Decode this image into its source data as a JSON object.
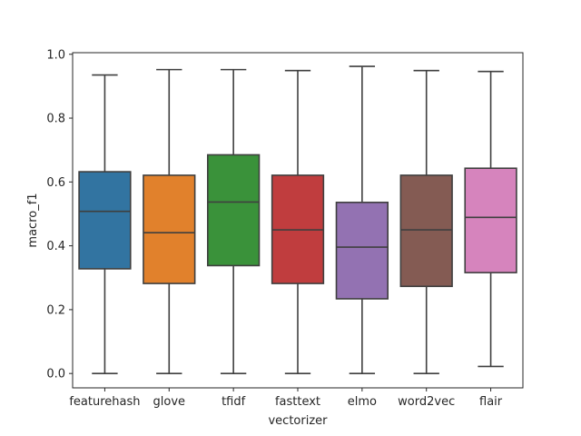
{
  "chart_data": {
    "type": "box",
    "title": "",
    "xlabel": "vectorizer",
    "ylabel": "macro_f1",
    "ylim": [
      -0.045,
      1.005
    ],
    "yticks": [
      0.0,
      0.2,
      0.4,
      0.6,
      0.8,
      1.0
    ],
    "ytick_labels": [
      "0.0",
      "0.2",
      "0.4",
      "0.6",
      "0.8",
      "1.0"
    ],
    "grid": false,
    "categories": [
      "featurehash",
      "glove",
      "tfidf",
      "fasttext",
      "elmo",
      "word2vec",
      "flair"
    ],
    "boxes": [
      {
        "category": "featurehash",
        "whisker_low": 0.0,
        "q1": 0.328,
        "median": 0.508,
        "q3": 0.632,
        "whisker_high": 0.935,
        "color": "#3274a1"
      },
      {
        "category": "glove",
        "whisker_low": 0.0,
        "q1": 0.282,
        "median": 0.441,
        "q3": 0.621,
        "whisker_high": 0.952,
        "color": "#e1812c"
      },
      {
        "category": "tfidf",
        "whisker_low": 0.0,
        "q1": 0.338,
        "median": 0.537,
        "q3": 0.685,
        "whisker_high": 0.952,
        "color": "#3a923a"
      },
      {
        "category": "fasttext",
        "whisker_low": 0.0,
        "q1": 0.282,
        "median": 0.45,
        "q3": 0.621,
        "whisker_high": 0.949,
        "color": "#c03d3e"
      },
      {
        "category": "elmo",
        "whisker_low": 0.0,
        "q1": 0.234,
        "median": 0.396,
        "q3": 0.536,
        "whisker_high": 0.962,
        "color": "#9372b2"
      },
      {
        "category": "word2vec",
        "whisker_low": 0.0,
        "q1": 0.273,
        "median": 0.45,
        "q3": 0.621,
        "whisker_high": 0.949,
        "color": "#845b53"
      },
      {
        "category": "flair",
        "whisker_low": 0.022,
        "q1": 0.316,
        "median": 0.489,
        "q3": 0.643,
        "whisker_high": 0.946,
        "color": "#d684bd"
      }
    ],
    "line_color": "#3f3f3f"
  }
}
